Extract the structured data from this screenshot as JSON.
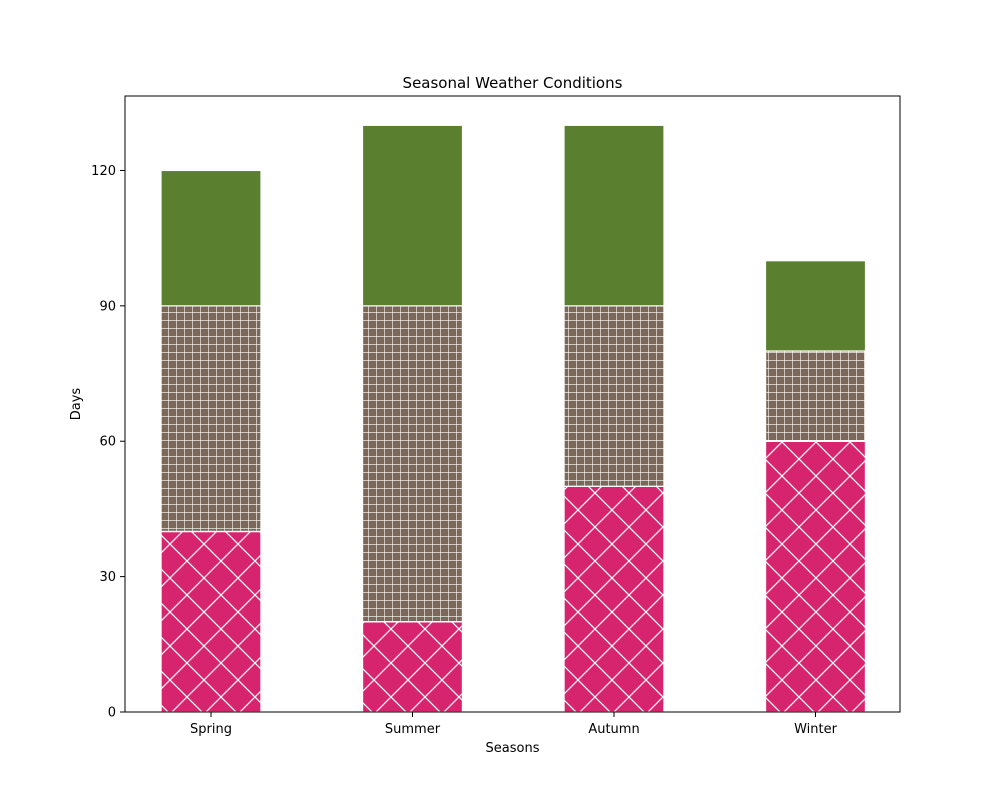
{
  "chart_data": {
    "type": "bar",
    "stacked": true,
    "title": "Seasonal Weather Conditions",
    "xlabel": "Seasons",
    "ylabel": "Days",
    "categories": [
      "Spring",
      "Summer",
      "Autumn",
      "Winter"
    ],
    "ylim": [
      0,
      136.5
    ],
    "yticks": [
      0,
      30,
      60,
      90,
      120
    ],
    "grid": false,
    "legend": "none",
    "series": [
      {
        "values": [
          40,
          20,
          50,
          60
        ],
        "color": "#d6246e",
        "pattern": "crosshatch-diagonal"
      },
      {
        "values": [
          50,
          70,
          40,
          20
        ],
        "color": "#7b6858",
        "pattern": "grid"
      },
      {
        "values": [
          30,
          40,
          40,
          20
        ],
        "color": "#5a7f2f",
        "pattern": "none"
      }
    ]
  }
}
